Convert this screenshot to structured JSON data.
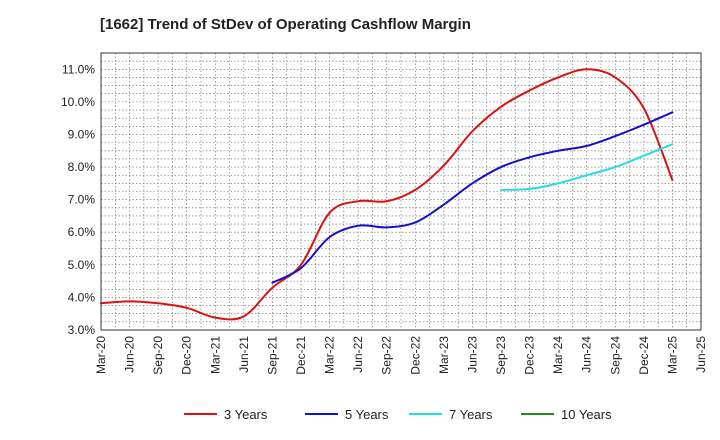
{
  "chart_data": {
    "type": "line",
    "title": "[1662]  Trend of StDev of Operating Cashflow Margin",
    "xlabel": "",
    "ylabel": "",
    "x": [
      "Mar-20",
      "Jun-20",
      "Sep-20",
      "Dec-20",
      "Mar-21",
      "Jun-21",
      "Sep-21",
      "Dec-21",
      "Mar-22",
      "Jun-22",
      "Sep-22",
      "Dec-22",
      "Mar-23",
      "Jun-23",
      "Sep-23",
      "Dec-23",
      "Mar-24",
      "Jun-24",
      "Sep-24",
      "Dec-24",
      "Mar-25",
      "Jun-25"
    ],
    "ylim": [
      3.0,
      11.5
    ],
    "yticks": [
      3.0,
      4.0,
      5.0,
      6.0,
      7.0,
      8.0,
      9.0,
      10.0,
      11.0
    ],
    "ytick_labels": [
      "3.0%",
      "4.0%",
      "5.0%",
      "6.0%",
      "7.0%",
      "8.0%",
      "9.0%",
      "10.0%",
      "11.0%"
    ],
    "grid": true,
    "legend_position": "bottom",
    "series": [
      {
        "name": "3 Years",
        "color": "#dd1111",
        "values": [
          3.82,
          3.88,
          3.82,
          3.68,
          3.38,
          3.42,
          4.3,
          5.0,
          6.6,
          6.95,
          6.95,
          7.3,
          8.05,
          9.1,
          9.85,
          10.35,
          10.75,
          11.0,
          10.75,
          9.8,
          7.6,
          null
        ]
      },
      {
        "name": "5 Years",
        "color": "#1111cc",
        "values": [
          null,
          null,
          null,
          null,
          null,
          null,
          4.45,
          4.9,
          5.85,
          6.2,
          6.15,
          6.3,
          6.85,
          7.5,
          8.0,
          8.3,
          8.5,
          8.65,
          8.95,
          9.3,
          9.68,
          null
        ]
      },
      {
        "name": "7 Years",
        "color": "#22dddd",
        "values": [
          null,
          null,
          null,
          null,
          null,
          null,
          null,
          null,
          null,
          null,
          null,
          null,
          null,
          null,
          7.3,
          7.33,
          7.5,
          7.75,
          8.0,
          8.35,
          8.7,
          null
        ]
      },
      {
        "name": "10 Years",
        "color": "#228822",
        "values": [
          null,
          null,
          null,
          null,
          null,
          null,
          null,
          null,
          null,
          null,
          null,
          null,
          null,
          null,
          null,
          null,
          null,
          null,
          null,
          null,
          null,
          null
        ]
      }
    ]
  }
}
